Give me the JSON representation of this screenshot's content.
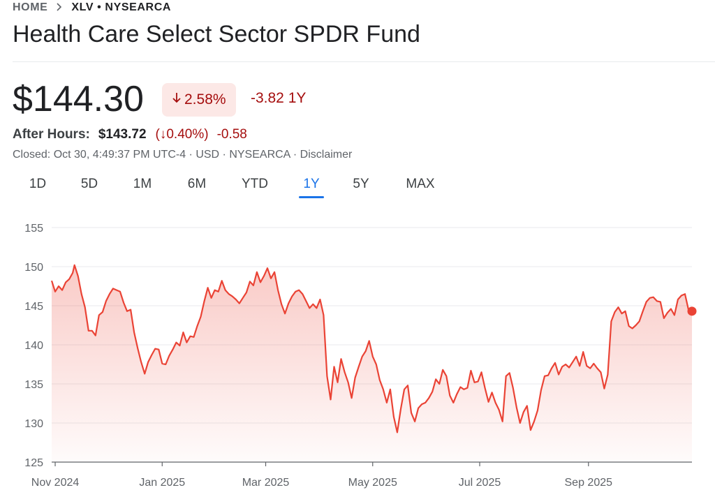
{
  "breadcrumb": {
    "home": "HOME",
    "separator_icon": "chevron-right-icon",
    "ticker": "XLV • NYSEARCA"
  },
  "title": "Health Care Select Sector SPDR Fund",
  "price": "$144.30",
  "change": {
    "pct": "2.58%",
    "abs": "-3.82",
    "period": "1Y",
    "color": "#a50e0e",
    "badge_bg": "#fce8e6"
  },
  "after_hours": {
    "label": "After Hours:",
    "price": "$143.72",
    "pct": "(↓0.40%)",
    "abs": "-0.58"
  },
  "closed_line": "Closed: Oct 30, 4:49:37 PM UTC-4 · USD · NYSEARCA · Disclaimer",
  "ranges": [
    "1D",
    "5D",
    "1M",
    "6M",
    "YTD",
    "1Y",
    "5Y",
    "MAX"
  ],
  "active_range": "1Y",
  "chart_data": {
    "type": "area",
    "line_color": "#ea4335",
    "ylim": [
      125,
      155
    ],
    "yticks": [
      155,
      150,
      145,
      140,
      135,
      130,
      125
    ],
    "grid": true,
    "x_start": "2024-10-30",
    "x_end": "2025-10-30",
    "xticks": [
      {
        "date": "2024-11-01",
        "label": "Nov 2024"
      },
      {
        "date": "2025-01-01",
        "label": "Jan 2025"
      },
      {
        "date": "2025-03-01",
        "label": "Mar 2025"
      },
      {
        "date": "2025-05-01",
        "label": "May 2025"
      },
      {
        "date": "2025-07-01",
        "label": "Jul 2025"
      },
      {
        "date": "2025-09-01",
        "label": "Sep 2025"
      }
    ],
    "series": [
      {
        "points": [
          [
            "2024-10-30",
            148.2
          ],
          [
            "2024-11-01",
            146.8
          ],
          [
            "2024-11-03",
            147.5
          ],
          [
            "2024-11-05",
            147.0
          ],
          [
            "2024-11-07",
            148.0
          ],
          [
            "2024-11-09",
            148.4
          ],
          [
            "2024-11-11",
            149.2
          ],
          [
            "2024-11-12",
            150.2
          ],
          [
            "2024-11-14",
            148.8
          ],
          [
            "2024-11-16",
            146.5
          ],
          [
            "2024-11-18",
            144.8
          ],
          [
            "2024-11-20",
            141.8
          ],
          [
            "2024-11-22",
            141.8
          ],
          [
            "2024-11-24",
            141.2
          ],
          [
            "2024-11-26",
            143.8
          ],
          [
            "2024-11-28",
            144.2
          ],
          [
            "2024-11-30",
            145.6
          ],
          [
            "2024-12-02",
            146.5
          ],
          [
            "2024-12-04",
            147.2
          ],
          [
            "2024-12-06",
            147.0
          ],
          [
            "2024-12-08",
            146.8
          ],
          [
            "2024-12-10",
            145.4
          ],
          [
            "2024-12-12",
            144.3
          ],
          [
            "2024-12-14",
            144.5
          ],
          [
            "2024-12-16",
            141.6
          ],
          [
            "2024-12-18",
            139.6
          ],
          [
            "2024-12-20",
            137.8
          ],
          [
            "2024-12-22",
            136.3
          ],
          [
            "2024-12-24",
            137.8
          ],
          [
            "2024-12-26",
            138.7
          ],
          [
            "2024-12-28",
            139.5
          ],
          [
            "2024-12-30",
            139.4
          ],
          [
            "2025-01-01",
            137.6
          ],
          [
            "2025-01-03",
            137.5
          ],
          [
            "2025-01-05",
            138.6
          ],
          [
            "2025-01-07",
            139.4
          ],
          [
            "2025-01-09",
            140.3
          ],
          [
            "2025-01-11",
            139.9
          ],
          [
            "2025-01-13",
            141.6
          ],
          [
            "2025-01-15",
            140.3
          ],
          [
            "2025-01-17",
            141.1
          ],
          [
            "2025-01-19",
            141.0
          ],
          [
            "2025-01-21",
            142.4
          ],
          [
            "2025-01-23",
            143.6
          ],
          [
            "2025-01-25",
            145.6
          ],
          [
            "2025-01-27",
            147.3
          ],
          [
            "2025-01-29",
            146.0
          ],
          [
            "2025-01-31",
            147.0
          ],
          [
            "2025-02-02",
            146.8
          ],
          [
            "2025-02-04",
            148.2
          ],
          [
            "2025-02-06",
            147.0
          ],
          [
            "2025-02-08",
            146.5
          ],
          [
            "2025-02-10",
            146.2
          ],
          [
            "2025-02-12",
            145.8
          ],
          [
            "2025-02-14",
            145.3
          ],
          [
            "2025-02-16",
            146.0
          ],
          [
            "2025-02-18",
            146.7
          ],
          [
            "2025-02-20",
            148.1
          ],
          [
            "2025-02-22",
            147.6
          ],
          [
            "2025-02-24",
            149.3
          ],
          [
            "2025-02-26",
            148.0
          ],
          [
            "2025-02-28",
            148.8
          ],
          [
            "2025-03-02",
            149.8
          ],
          [
            "2025-03-04",
            148.5
          ],
          [
            "2025-03-06",
            149.3
          ],
          [
            "2025-03-08",
            147.0
          ],
          [
            "2025-03-10",
            145.2
          ],
          [
            "2025-03-12",
            144.0
          ],
          [
            "2025-03-14",
            145.3
          ],
          [
            "2025-03-16",
            146.2
          ],
          [
            "2025-03-18",
            146.8
          ],
          [
            "2025-03-20",
            147.0
          ],
          [
            "2025-03-22",
            146.5
          ],
          [
            "2025-03-24",
            145.6
          ],
          [
            "2025-03-26",
            144.7
          ],
          [
            "2025-03-28",
            145.2
          ],
          [
            "2025-03-30",
            144.7
          ],
          [
            "2025-04-01",
            145.8
          ],
          [
            "2025-04-03",
            143.8
          ],
          [
            "2025-04-05",
            136.0
          ],
          [
            "2025-04-07",
            133.0
          ],
          [
            "2025-04-09",
            137.2
          ],
          [
            "2025-04-11",
            135.2
          ],
          [
            "2025-04-13",
            138.2
          ],
          [
            "2025-04-15",
            136.5
          ],
          [
            "2025-04-17",
            135.2
          ],
          [
            "2025-04-19",
            133.2
          ],
          [
            "2025-04-21",
            135.8
          ],
          [
            "2025-04-23",
            137.2
          ],
          [
            "2025-04-25",
            138.5
          ],
          [
            "2025-04-27",
            139.2
          ],
          [
            "2025-04-29",
            140.5
          ],
          [
            "2025-05-01",
            138.5
          ],
          [
            "2025-05-03",
            137.5
          ],
          [
            "2025-05-05",
            135.5
          ],
          [
            "2025-05-07",
            134.3
          ],
          [
            "2025-05-09",
            132.6
          ],
          [
            "2025-05-11",
            134.3
          ],
          [
            "2025-05-13",
            130.8
          ],
          [
            "2025-05-15",
            128.8
          ],
          [
            "2025-05-17",
            131.8
          ],
          [
            "2025-05-19",
            134.3
          ],
          [
            "2025-05-21",
            134.8
          ],
          [
            "2025-05-23",
            131.3
          ],
          [
            "2025-05-25",
            130.2
          ],
          [
            "2025-05-27",
            131.9
          ],
          [
            "2025-05-29",
            132.4
          ],
          [
            "2025-05-31",
            132.6
          ],
          [
            "2025-06-02",
            133.2
          ],
          [
            "2025-06-04",
            134.0
          ],
          [
            "2025-06-06",
            135.6
          ],
          [
            "2025-06-08",
            135.0
          ],
          [
            "2025-06-10",
            136.8
          ],
          [
            "2025-06-12",
            136.0
          ],
          [
            "2025-06-14",
            133.5
          ],
          [
            "2025-06-16",
            132.6
          ],
          [
            "2025-06-18",
            133.7
          ],
          [
            "2025-06-20",
            134.6
          ],
          [
            "2025-06-22",
            134.3
          ],
          [
            "2025-06-24",
            134.5
          ],
          [
            "2025-06-26",
            136.7
          ],
          [
            "2025-06-28",
            135.2
          ],
          [
            "2025-06-30",
            135.3
          ],
          [
            "2025-07-02",
            136.5
          ],
          [
            "2025-07-04",
            134.5
          ],
          [
            "2025-07-06",
            132.7
          ],
          [
            "2025-07-08",
            133.9
          ],
          [
            "2025-07-10",
            132.6
          ],
          [
            "2025-07-12",
            131.7
          ],
          [
            "2025-07-14",
            130.2
          ],
          [
            "2025-07-16",
            136.0
          ],
          [
            "2025-07-18",
            136.4
          ],
          [
            "2025-07-20",
            134.5
          ],
          [
            "2025-07-22",
            132.0
          ],
          [
            "2025-07-24",
            130.0
          ],
          [
            "2025-07-26",
            131.4
          ],
          [
            "2025-07-28",
            132.2
          ],
          [
            "2025-07-30",
            129.1
          ],
          [
            "2025-08-01",
            130.2
          ],
          [
            "2025-08-03",
            131.6
          ],
          [
            "2025-08-05",
            134.2
          ],
          [
            "2025-08-07",
            136.0
          ],
          [
            "2025-08-09",
            136.1
          ],
          [
            "2025-08-11",
            137.0
          ],
          [
            "2025-08-13",
            137.7
          ],
          [
            "2025-08-15",
            136.2
          ],
          [
            "2025-08-17",
            137.2
          ],
          [
            "2025-08-19",
            137.5
          ],
          [
            "2025-08-21",
            137.1
          ],
          [
            "2025-08-23",
            137.8
          ],
          [
            "2025-08-25",
            138.5
          ],
          [
            "2025-08-27",
            137.3
          ],
          [
            "2025-08-29",
            139.1
          ],
          [
            "2025-08-31",
            137.3
          ],
          [
            "2025-09-02",
            137.0
          ],
          [
            "2025-09-04",
            137.6
          ],
          [
            "2025-09-06",
            137.0
          ],
          [
            "2025-09-08",
            136.5
          ],
          [
            "2025-09-10",
            134.4
          ],
          [
            "2025-09-12",
            136.2
          ],
          [
            "2025-09-14",
            143.0
          ],
          [
            "2025-09-16",
            144.2
          ],
          [
            "2025-09-18",
            144.8
          ],
          [
            "2025-09-20",
            144.0
          ],
          [
            "2025-09-22",
            144.3
          ],
          [
            "2025-09-24",
            142.4
          ],
          [
            "2025-09-26",
            142.1
          ],
          [
            "2025-09-28",
            142.5
          ],
          [
            "2025-09-30",
            143.0
          ],
          [
            "2025-10-02",
            144.3
          ],
          [
            "2025-10-04",
            145.5
          ],
          [
            "2025-10-06",
            146.0
          ],
          [
            "2025-10-08",
            146.1
          ],
          [
            "2025-10-10",
            145.6
          ],
          [
            "2025-10-12",
            145.5
          ],
          [
            "2025-10-14",
            143.4
          ],
          [
            "2025-10-16",
            144.1
          ],
          [
            "2025-10-18",
            144.6
          ],
          [
            "2025-10-20",
            143.8
          ],
          [
            "2025-10-22",
            145.8
          ],
          [
            "2025-10-24",
            146.3
          ],
          [
            "2025-10-26",
            146.5
          ],
          [
            "2025-10-28",
            144.5
          ],
          [
            "2025-10-30",
            144.3
          ]
        ]
      }
    ]
  }
}
